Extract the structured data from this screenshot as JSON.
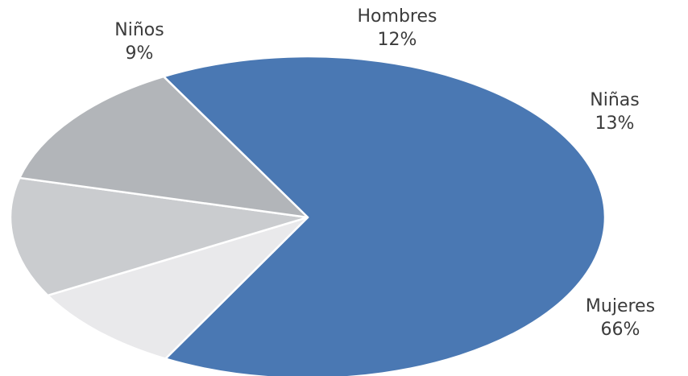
{
  "chart_data": {
    "type": "pie",
    "slices": [
      {
        "label": "Mujeres",
        "value": 66,
        "value_label": "66%",
        "color": "#4a78b3"
      },
      {
        "label": "Niños",
        "value": 9,
        "value_label": "9%",
        "color": "#e9e9eb"
      },
      {
        "label": "Hombres",
        "value": 12,
        "value_label": "12%",
        "color": "#cacccf"
      },
      {
        "label": "Niñas",
        "value": 13,
        "value_label": "13%",
        "color": "#b2b5b9"
      }
    ],
    "legend": "none",
    "data_labels": "outside"
  }
}
